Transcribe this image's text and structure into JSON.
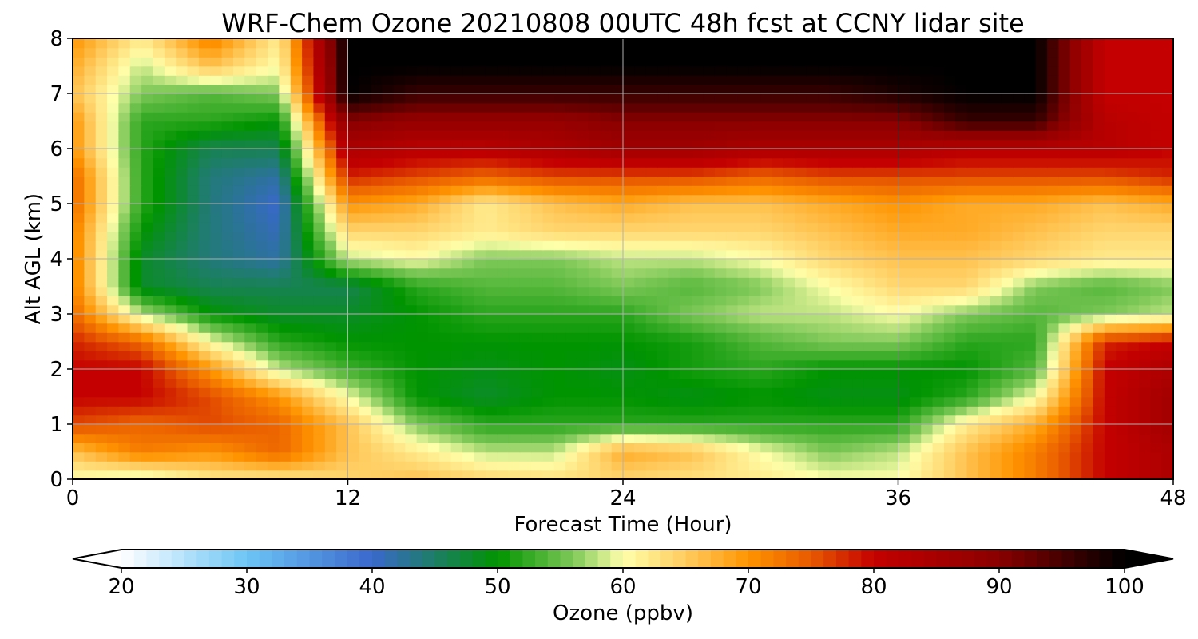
{
  "chart_data": {
    "type": "heatmap",
    "title": "WRF-Chem Ozone  20210808 00UTC 48h fcst at CCNY lidar site",
    "xlabel": "Forecast Time (Hour)",
    "ylabel": "Alt AGL (km)",
    "xlim": [
      0,
      48
    ],
    "ylim": [
      0,
      8
    ],
    "xticks": [
      0,
      12,
      24,
      36,
      48
    ],
    "yticks": [
      0,
      1,
      2,
      3,
      4,
      5,
      6,
      7,
      8
    ],
    "grid": true,
    "x": [
      0,
      3,
      6,
      9,
      12,
      15,
      18,
      21,
      24,
      27,
      30,
      33,
      36,
      39,
      42,
      45,
      48
    ],
    "y": [
      0,
      0.5,
      1,
      1.5,
      2,
      2.5,
      3,
      3.5,
      4,
      4.5,
      5,
      5.5,
      6,
      6.5,
      7,
      7.5,
      8
    ],
    "z": [
      [
        60,
        58,
        62,
        62,
        64,
        66,
        64,
        63,
        64,
        63,
        62,
        60,
        60,
        66,
        72,
        80,
        84
      ],
      [
        66,
        72,
        70,
        74,
        66,
        62,
        58,
        58,
        68,
        66,
        60,
        56,
        58,
        66,
        72,
        80,
        84
      ],
      [
        76,
        74,
        76,
        74,
        66,
        56,
        52,
        52,
        52,
        52,
        52,
        52,
        52,
        62,
        68,
        80,
        86
      ],
      [
        80,
        80,
        76,
        70,
        60,
        50,
        48,
        50,
        50,
        49,
        50,
        49,
        49,
        52,
        60,
        80,
        86
      ],
      [
        80,
        80,
        70,
        58,
        53,
        50,
        49,
        50,
        49,
        51,
        52,
        50,
        50,
        50,
        54,
        80,
        84
      ],
      [
        78,
        74,
        60,
        52,
        50,
        50,
        50,
        50,
        50,
        51,
        54,
        56,
        56,
        52,
        52,
        78,
        80
      ],
      [
        74,
        58,
        50,
        48,
        48,
        50,
        52,
        52,
        52,
        56,
        58,
        58,
        60,
        56,
        54,
        56,
        58
      ],
      [
        72,
        48,
        46,
        46,
        46,
        52,
        54,
        54,
        56,
        54,
        56,
        60,
        64,
        64,
        56,
        54,
        56
      ],
      [
        72,
        48,
        44,
        42,
        58,
        60,
        56,
        56,
        58,
        58,
        60,
        64,
        66,
        66,
        64,
        62,
        62
      ],
      [
        72,
        50,
        44,
        41,
        64,
        64,
        62,
        64,
        64,
        64,
        64,
        66,
        68,
        68,
        66,
        64,
        64
      ],
      [
        74,
        52,
        44,
        40,
        70,
        68,
        62,
        66,
        68,
        66,
        66,
        68,
        70,
        68,
        68,
        66,
        68
      ],
      [
        74,
        52,
        44,
        42,
        78,
        76,
        74,
        76,
        76,
        76,
        74,
        76,
        76,
        76,
        76,
        76,
        78
      ],
      [
        70,
        52,
        46,
        46,
        84,
        82,
        82,
        84,
        86,
        86,
        84,
        84,
        84,
        82,
        82,
        82,
        80
      ],
      [
        70,
        52,
        52,
        50,
        90,
        88,
        88,
        88,
        90,
        90,
        90,
        90,
        90,
        96,
        96,
        82,
        80
      ],
      [
        66,
        56,
        54,
        56,
        100,
        96,
        96,
        96,
        96,
        96,
        96,
        96,
        98,
        100,
        100,
        80,
        80
      ],
      [
        68,
        58,
        66,
        60,
        100,
        100,
        100,
        100,
        100,
        100,
        100,
        100,
        100,
        100,
        100,
        80,
        80
      ],
      [
        70,
        62,
        72,
        62,
        100,
        100,
        100,
        100,
        100,
        100,
        100,
        100,
        100,
        100,
        100,
        80,
        80
      ]
    ],
    "colorbar": {
      "label": "Ozone  (ppbv)",
      "min": 20,
      "max": 100,
      "ticks": [
        20,
        30,
        40,
        50,
        60,
        70,
        80,
        90,
        100
      ],
      "extend": "both",
      "color_stops": [
        [
          20,
          "#ffffff"
        ],
        [
          30,
          "#6cc5f5"
        ],
        [
          40,
          "#3a68cc"
        ],
        [
          50,
          "#009400"
        ],
        [
          56,
          "#7ec858"
        ],
        [
          60,
          "#ffffaa"
        ],
        [
          65,
          "#ffcc60"
        ],
        [
          70,
          "#ff9400"
        ],
        [
          75,
          "#e85a00"
        ],
        [
          80,
          "#c40000"
        ],
        [
          90,
          "#8a0000"
        ],
        [
          100,
          "#000000"
        ]
      ]
    }
  }
}
